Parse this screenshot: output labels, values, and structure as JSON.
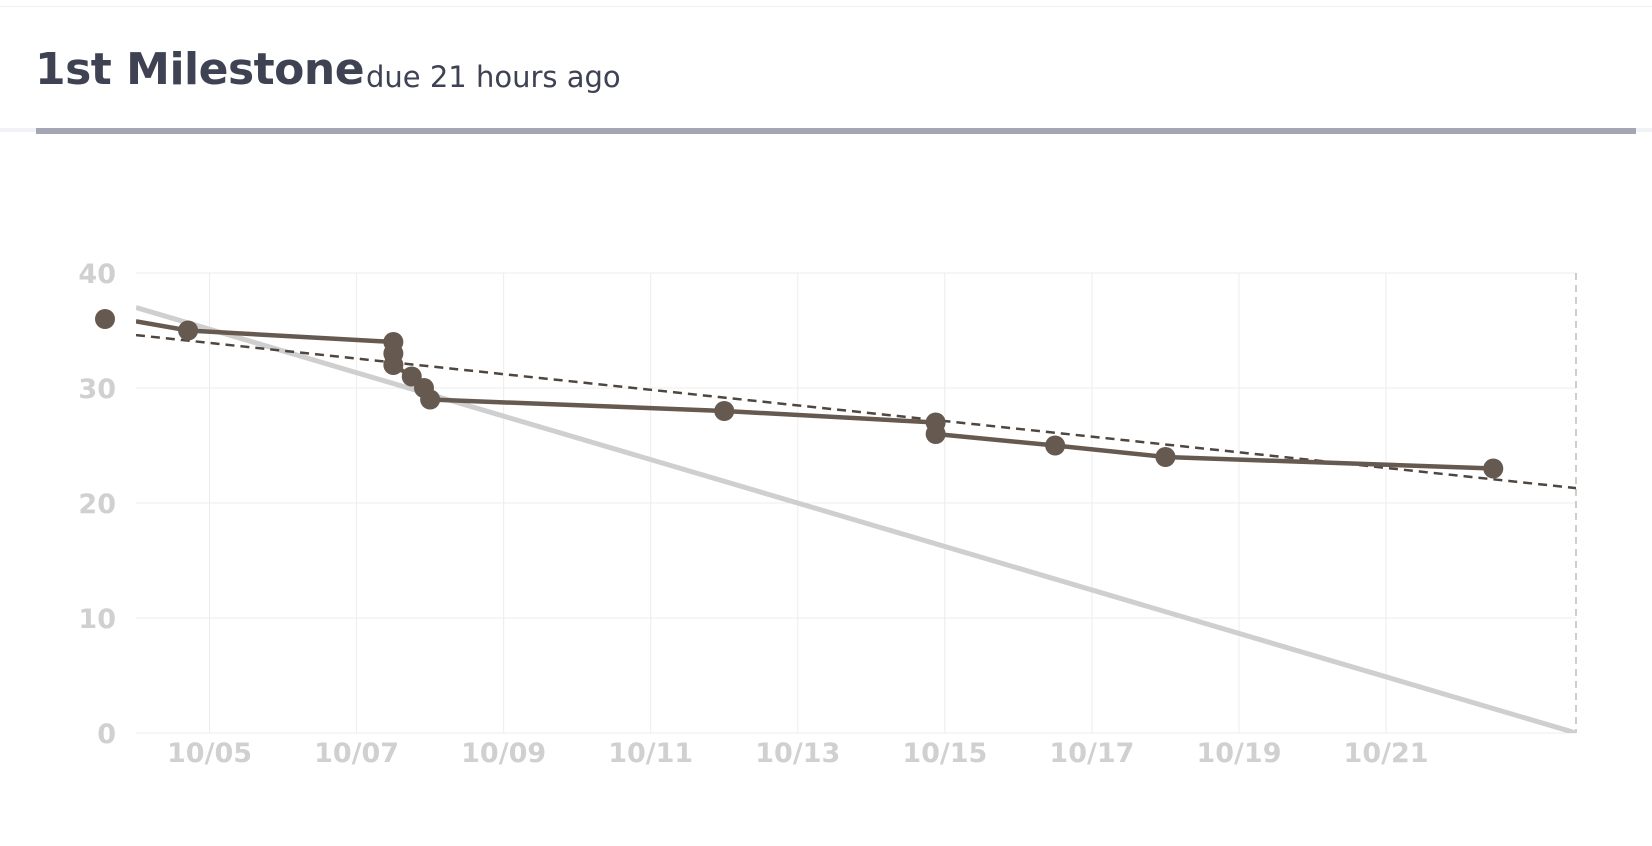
{
  "milestone": {
    "title": "1st Milestone",
    "due_text": "due 21 hours ago"
  },
  "colors": {
    "title": "#3e4253",
    "progress_bar": "#a4a7b3",
    "actual_line": "#665a50",
    "ideal_line": "#cfcfcf",
    "trend_line": "#4e463f",
    "grid": "#ececec",
    "tick_text": "#d0d0d0"
  },
  "chart_data": {
    "type": "line",
    "title": "",
    "xlabel": "",
    "ylabel": "",
    "x_tick_labels": [
      "10/05",
      "10/07",
      "10/09",
      "10/11",
      "10/13",
      "10/15",
      "10/17",
      "10/19",
      "10/21"
    ],
    "y_ticks": [
      0,
      10,
      20,
      30,
      40
    ],
    "xlim": [
      "10/04",
      "10/23 (~14:00)"
    ],
    "ylim": [
      0,
      40
    ],
    "grid": true,
    "series": [
      {
        "kind": "actual",
        "style": "solid-with-markers",
        "points": [
          {
            "x": "10/04 00:00",
            "y": 36
          },
          {
            "x": "10/04 17:00",
            "y": 35
          },
          {
            "x": "10/07 12:00",
            "y": 34
          },
          {
            "x": "10/07 12:00",
            "y": 33
          },
          {
            "x": "10/07 12:00",
            "y": 32
          },
          {
            "x": "10/07 18:00",
            "y": 31
          },
          {
            "x": "10/07 22:00",
            "y": 30
          },
          {
            "x": "10/08 00:00",
            "y": 29
          },
          {
            "x": "10/12 00:00",
            "y": 28
          },
          {
            "x": "10/14 21:00",
            "y": 27
          },
          {
            "x": "10/14 21:00",
            "y": 26
          },
          {
            "x": "10/16 12:00",
            "y": 25
          },
          {
            "x": "10/18 00:00",
            "y": 24
          },
          {
            "x": "10/22 11:00",
            "y": 23
          }
        ],
        "line_points": [
          {
            "x": "10/04 00:00",
            "y": 35.8
          },
          {
            "x": "10/04 17:00",
            "y": 35
          },
          {
            "x": "10/07 12:00",
            "y": 34
          },
          {
            "x": "10/07 12:00",
            "y": 32
          },
          {
            "x": "10/07 18:00",
            "y": 31
          },
          {
            "x": "10/07 22:00",
            "y": 30
          },
          {
            "x": "10/08 00:00",
            "y": 29
          },
          {
            "x": "10/12 00:00",
            "y": 28
          },
          {
            "x": "10/14 21:00",
            "y": 27
          },
          {
            "x": "10/14 21:00",
            "y": 26
          },
          {
            "x": "10/16 12:00",
            "y": 25
          },
          {
            "x": "10/18 00:00",
            "y": 24
          },
          {
            "x": "10/22 11:00",
            "y": 23
          }
        ]
      },
      {
        "kind": "ideal",
        "style": "solid-light",
        "points": [
          {
            "x": "10/04 00:00",
            "y": 37
          },
          {
            "x": "10/23 14:00",
            "y": 0
          }
        ]
      },
      {
        "kind": "trend",
        "style": "dashed",
        "points": [
          {
            "x": "10/04 00:00",
            "y": 34.6
          },
          {
            "x": "10/23 14:00",
            "y": 21.3
          }
        ]
      }
    ],
    "due_marker": {
      "x": "10/23 14:00",
      "style": "dashed-vertical"
    }
  }
}
